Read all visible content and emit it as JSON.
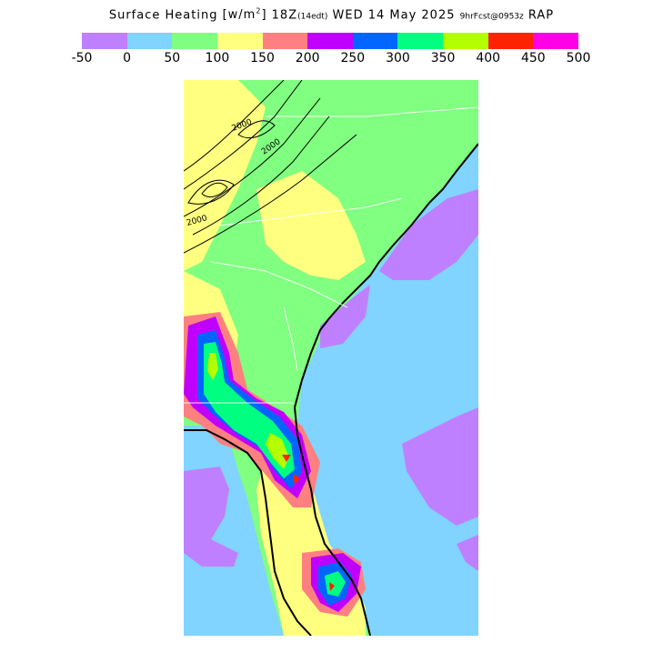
{
  "title": {
    "main": "Surface Heating",
    "units_pre": "[w/m",
    "units_sup": "2",
    "units_post": "]",
    "time": "18Z",
    "local": "(14edt)",
    "date": "WED 14 May 2025",
    "fcst": "9hrFcst@0953z",
    "model": "RAP"
  },
  "legend": {
    "colors": [
      "#bf80ff",
      "#80d4ff",
      "#80ff80",
      "#ffff80",
      "#ff8080",
      "#c000ff",
      "#0066ff",
      "#00ff80",
      "#b3ff00",
      "#ff2200",
      "#ff00e6"
    ],
    "tick_labels": [
      "-50",
      "0",
      "50",
      "100",
      "150",
      "200",
      "250",
      "300",
      "350",
      "400",
      "450",
      "500"
    ]
  },
  "map": {
    "contour_labels": [
      "2000",
      "2000",
      "2000"
    ],
    "colors": {
      "ocean": "#80d4ff",
      "low": "#bf80ff",
      "mid": "#80ff80",
      "warm": "#ffff80",
      "hot": "#ff8080",
      "vhot": "#c000ff",
      "peak1": "#0066ff",
      "peak2": "#00ff80",
      "peak3": "#b3ff00",
      "peak4": "#ff2200"
    }
  }
}
